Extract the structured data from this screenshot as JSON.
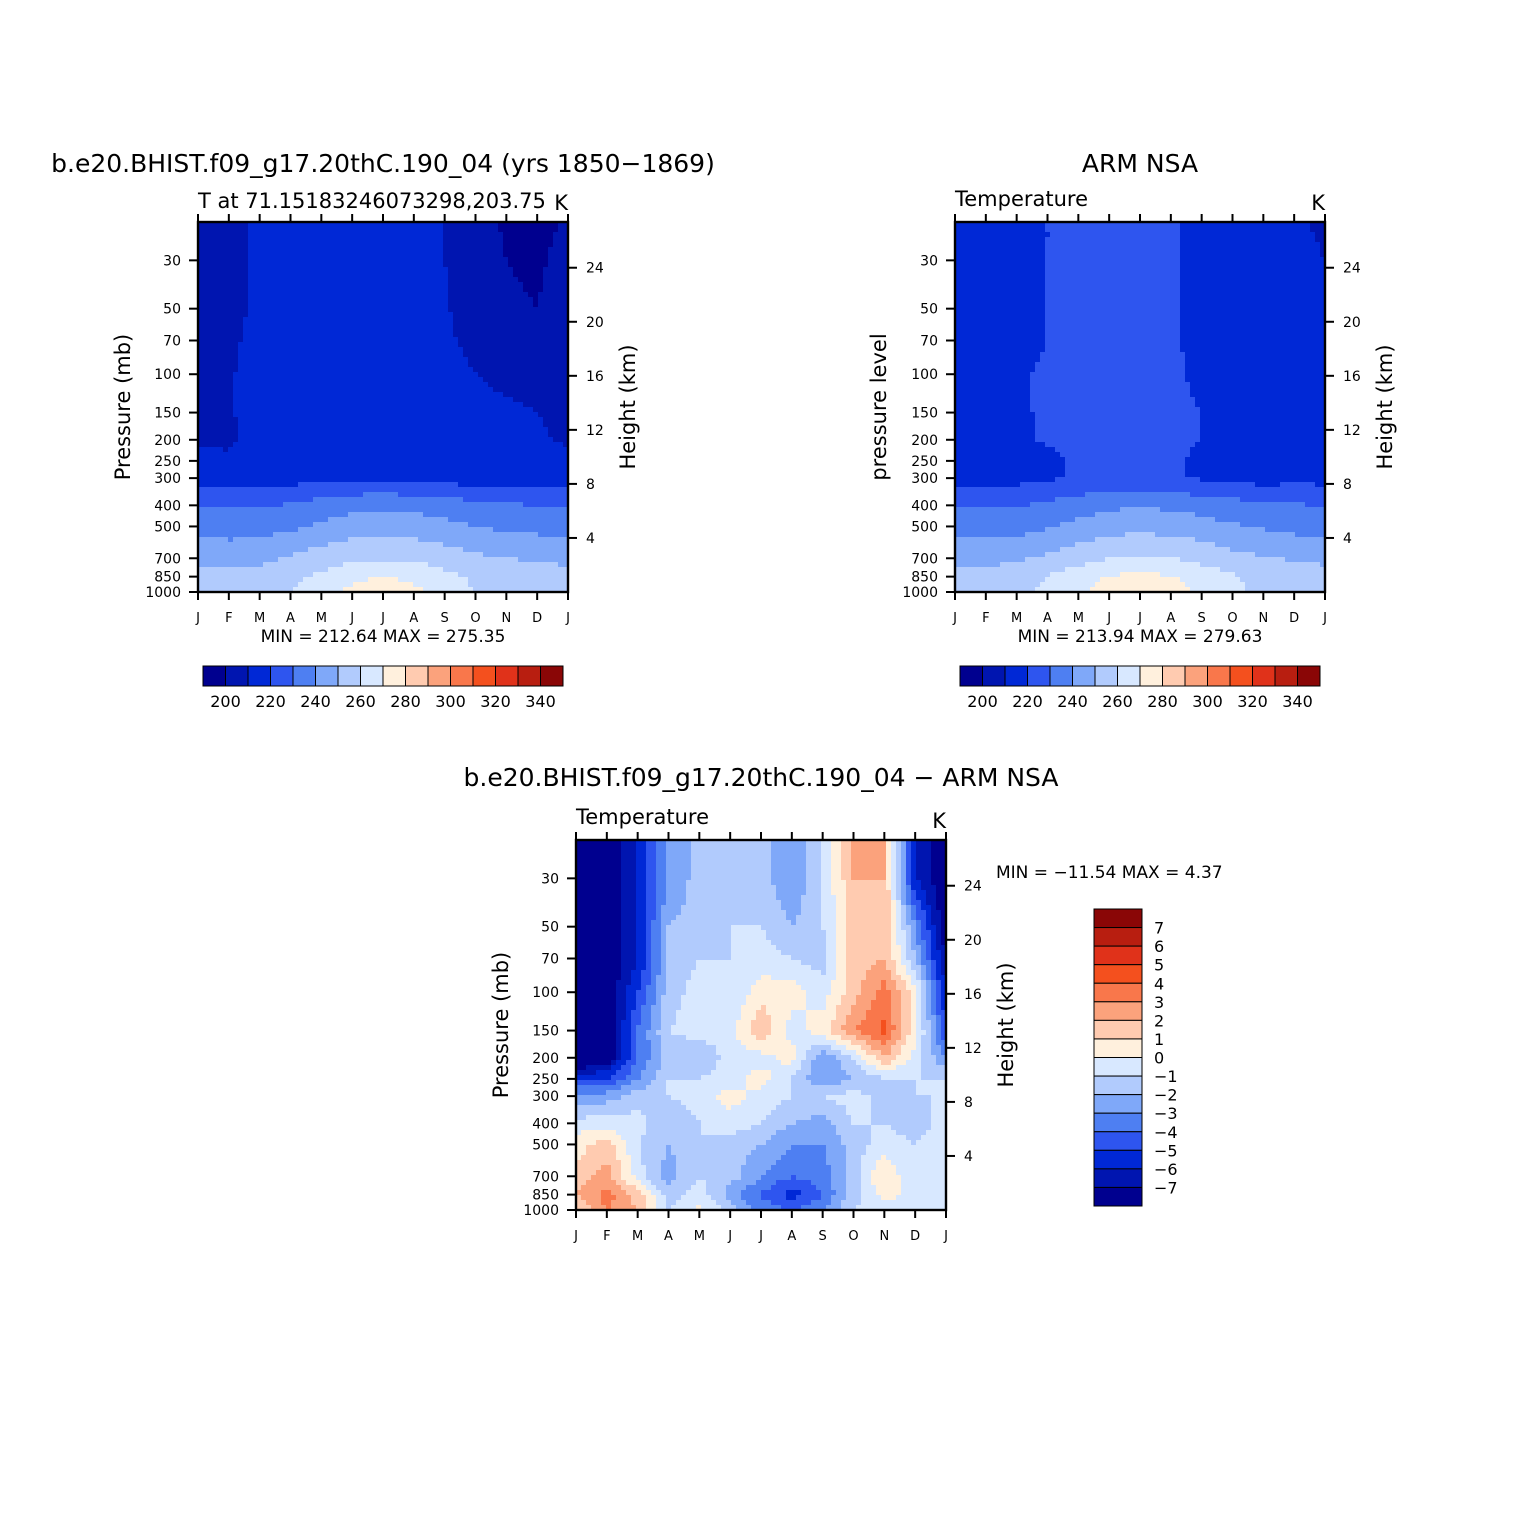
{
  "panels": [
    {
      "key": "model",
      "title": "b.e20.BHIST.f09_g17.20thC.190_04 (yrs 1850−1869)",
      "left_label": "T at 71.15183246073298,203.75",
      "units": "K",
      "ylabel": "Pressure (mb)",
      "ylabel_right": "Height (km)",
      "stats": "MIN = 212.64 MAX = 275.35"
    },
    {
      "key": "obs",
      "title": "ARM NSA",
      "left_label": "Temperature",
      "units": "K",
      "ylabel": "pressure level",
      "ylabel_right": "Height (km)",
      "stats": "MIN = 213.94 MAX = 279.63"
    },
    {
      "key": "diff",
      "title": "b.e20.BHIST.f09_g17.20thC.190_04 − ARM NSA",
      "left_label": "Temperature",
      "units": "K",
      "ylabel": "Pressure (mb)",
      "ylabel_right": "Height (km)",
      "stats": "MIN = −11.54 MAX =    4.37"
    }
  ],
  "chart_data": [
    {
      "type": "heatmap",
      "title": "b.e20.BHIST.f09_g17.20thC.190_04 (yrs 1850−1869)",
      "xlabel": "",
      "ylabel": "Pressure (mb)",
      "ylabel_right": "Height (km)",
      "x_ticks": [
        "J",
        "F",
        "M",
        "A",
        "M",
        "J",
        "J",
        "A",
        "S",
        "O",
        "N",
        "D",
        "J"
      ],
      "y_ticks": [
        30,
        50,
        70,
        100,
        150,
        200,
        250,
        300,
        400,
        500,
        700,
        850,
        1000
      ],
      "y_scale": "log",
      "ylim": [
        1000,
        20
      ],
      "y2_ticks": [
        4,
        8,
        12,
        16,
        20,
        24
      ],
      "months": [
        "J",
        "F",
        "M",
        "A",
        "M",
        "J",
        "J",
        "A",
        "S",
        "O",
        "N",
        "D",
        "J"
      ],
      "levels": [
        20,
        30,
        50,
        70,
        100,
        150,
        200,
        250,
        300,
        400,
        500,
        700,
        850,
        1000
      ],
      "values": [
        [
          202,
          206,
          212,
          217,
          218,
          220,
          219,
          215,
          210,
          203,
          199,
          198,
          201
        ],
        [
          203,
          206,
          212,
          217,
          218,
          220,
          219,
          215,
          210,
          204,
          200,
          199,
          202
        ],
        [
          204,
          207,
          212,
          217,
          218,
          220,
          219,
          215,
          211,
          205,
          201,
          200,
          203
        ],
        [
          205,
          208,
          213,
          217,
          218,
          220,
          219,
          216,
          212,
          207,
          202,
          201,
          204
        ],
        [
          207,
          209,
          214,
          218,
          218,
          220,
          219,
          217,
          214,
          210,
          206,
          205,
          206
        ],
        [
          208,
          209,
          214,
          218,
          218,
          220,
          220,
          217,
          216,
          215,
          213,
          210,
          208
        ],
        [
          209,
          209,
          212,
          217,
          218,
          219,
          219,
          217,
          214,
          212,
          212,
          211,
          209
        ],
        [
          212,
          211,
          213,
          216,
          218,
          219,
          219,
          216,
          213,
          212,
          213,
          213,
          212
        ],
        [
          216,
          215,
          215,
          216,
          218,
          219,
          219,
          218,
          216,
          215,
          216,
          216,
          216
        ],
        [
          229,
          229,
          229,
          231,
          234,
          237,
          238,
          237,
          235,
          233,
          231,
          230,
          229
        ],
        [
          236,
          235,
          236,
          238,
          242,
          245,
          246,
          245,
          243,
          240,
          238,
          237,
          236
        ],
        [
          248,
          247,
          248,
          251,
          255,
          258,
          259,
          258,
          255,
          252,
          250,
          249,
          248
        ],
        [
          253,
          252,
          253,
          257,
          262,
          268,
          270,
          268,
          263,
          258,
          255,
          254,
          253
        ],
        [
          256,
          255,
          256,
          260,
          266,
          272,
          275,
          272,
          266,
          260,
          257,
          256,
          256
        ]
      ],
      "colorbar": {
        "orientation": "horizontal",
        "levels": [
          195,
          200,
          210,
          220,
          230,
          240,
          250,
          260,
          270,
          280,
          290,
          300,
          310,
          320,
          330,
          340,
          345
        ],
        "colors": [
          "#00008f",
          "#0015b0",
          "#0028d6",
          "#2e55ef",
          "#4e7ff2",
          "#7fa8f9",
          "#b1cbfd",
          "#d8e8ff",
          "#fff0dd",
          "#ffcbb0",
          "#fba27c",
          "#f9774b",
          "#f4501e",
          "#e0321a",
          "#b81e10",
          "#8a0606"
        ],
        "tick_labels": [
          "200",
          "220",
          "240",
          "260",
          "280",
          "300",
          "320",
          "340"
        ],
        "contour_levels": [
          200,
          210,
          220,
          230,
          240,
          250,
          260,
          270,
          280,
          290,
          300,
          310,
          320,
          330,
          340
        ]
      },
      "stats": "MIN = 212.64 MAX = 275.35"
    },
    {
      "type": "heatmap",
      "title": "ARM NSA",
      "xlabel": "",
      "ylabel": "pressure level",
      "ylabel_right": "Height (km)",
      "x_ticks": [
        "J",
        "F",
        "M",
        "A",
        "M",
        "J",
        "J",
        "A",
        "S",
        "O",
        "N",
        "D",
        "J"
      ],
      "y_ticks": [
        30,
        50,
        70,
        100,
        150,
        200,
        250,
        300,
        400,
        500,
        700,
        850,
        1000
      ],
      "y_scale": "log",
      "ylim": [
        1000,
        20
      ],
      "y2_ticks": [
        4,
        8,
        12,
        16,
        20,
        24
      ],
      "months": [
        "J",
        "F",
        "M",
        "A",
        "M",
        "J",
        "J",
        "A",
        "S",
        "O",
        "N",
        "D",
        "J"
      ],
      "levels": [
        20,
        30,
        50,
        70,
        100,
        150,
        200,
        250,
        300,
        400,
        500,
        700,
        850,
        1000
      ],
      "values": [
        [
          212,
          214,
          218,
          220,
          222,
          223,
          224,
          221,
          218,
          215,
          213,
          212,
          208
        ],
        [
          213,
          215,
          218,
          220,
          222,
          223,
          224,
          221,
          218,
          215,
          214,
          213,
          210
        ],
        [
          214,
          215,
          218,
          220,
          222,
          223,
          223,
          221,
          218,
          215,
          214,
          213,
          212
        ],
        [
          215,
          216,
          218,
          220,
          222,
          223,
          223,
          221,
          218,
          216,
          215,
          214,
          213
        ],
        [
          217,
          218,
          219,
          221,
          222,
          223,
          222,
          221,
          219,
          216,
          215,
          215,
          214
        ],
        [
          219,
          218,
          219,
          221,
          222,
          223,
          222,
          221,
          220,
          217,
          215,
          215,
          216
        ],
        [
          218,
          216,
          218,
          221,
          222,
          223,
          222,
          221,
          220,
          217,
          214,
          214,
          218
        ],
        [
          214,
          213,
          215,
          218,
          221,
          222,
          222,
          221,
          219,
          215,
          213,
          213,
          214
        ],
        [
          217,
          216,
          217,
          219,
          221,
          222,
          222,
          221,
          219,
          217,
          216,
          217,
          217
        ],
        [
          229,
          229,
          229,
          232,
          235,
          238,
          239,
          238,
          236,
          234,
          232,
          231,
          229
        ],
        [
          236,
          236,
          236,
          239,
          243,
          246,
          247,
          246,
          244,
          241,
          239,
          237,
          236
        ],
        [
          248,
          247,
          249,
          252,
          256,
          260,
          261,
          260,
          257,
          253,
          251,
          249,
          248
        ],
        [
          253,
          253,
          255,
          260,
          266,
          271,
          272,
          271,
          266,
          261,
          257,
          255,
          253
        ],
        [
          255,
          255,
          257,
          262,
          268,
          275,
          278,
          275,
          268,
          262,
          258,
          256,
          255
        ]
      ],
      "colorbar": {
        "orientation": "horizontal",
        "levels": [
          195,
          200,
          210,
          220,
          230,
          240,
          250,
          260,
          270,
          280,
          290,
          300,
          310,
          320,
          330,
          340,
          345
        ],
        "colors": [
          "#00008f",
          "#0015b0",
          "#0028d6",
          "#2e55ef",
          "#4e7ff2",
          "#7fa8f9",
          "#b1cbfd",
          "#d8e8ff",
          "#fff0dd",
          "#ffcbb0",
          "#fba27c",
          "#f9774b",
          "#f4501e",
          "#e0321a",
          "#b81e10",
          "#8a0606"
        ],
        "tick_labels": [
          "200",
          "220",
          "240",
          "260",
          "280",
          "300",
          "320",
          "340"
        ],
        "contour_levels": [
          200,
          210,
          220,
          230,
          240,
          250,
          260,
          270,
          280,
          290,
          300,
          310,
          320,
          330,
          340
        ]
      },
      "stats": "MIN = 213.94 MAX = 279.63"
    },
    {
      "type": "heatmap",
      "title": "b.e20.BHIST.f09_g17.20thC.190_04 − ARM NSA",
      "xlabel": "",
      "ylabel": "Pressure (mb)",
      "ylabel_right": "Height (km)",
      "x_ticks": [
        "J",
        "F",
        "M",
        "A",
        "M",
        "J",
        "J",
        "A",
        "S",
        "O",
        "N",
        "D",
        "J"
      ],
      "y_ticks": [
        30,
        50,
        70,
        100,
        150,
        200,
        250,
        300,
        400,
        500,
        700,
        850,
        1000
      ],
      "y_scale": "log",
      "ylim": [
        1000,
        20
      ],
      "y2_ticks": [
        4,
        8,
        12,
        16,
        20,
        24
      ],
      "months": [
        "J",
        "F",
        "M",
        "A",
        "M",
        "J",
        "J",
        "A",
        "S",
        "O",
        "N",
        "D",
        "J"
      ],
      "levels": [
        20,
        30,
        50,
        70,
        100,
        150,
        200,
        250,
        300,
        400,
        500,
        700,
        850,
        1000
      ],
      "values": [
        [
          -10,
          -8,
          -6,
          -3,
          -1.5,
          -1,
          -1.5,
          -3,
          -1,
          2,
          2,
          -6,
          -8
        ],
        [
          -10,
          -8,
          -6,
          -3,
          -1.5,
          -1,
          -1.5,
          -3,
          -1,
          2,
          2,
          -6,
          -8
        ],
        [
          -10,
          -8,
          -6,
          -2,
          -1.5,
          -1,
          -1,
          -2,
          -1,
          1.5,
          2,
          -3,
          -8
        ],
        [
          -10,
          -8,
          -6,
          -2,
          -1,
          -1,
          -0.5,
          -1,
          -1.5,
          1.5,
          2,
          -2,
          -7
        ],
        [
          -10,
          -8,
          -5,
          -1.5,
          -0.5,
          -1,
          0.5,
          0.5,
          -0.5,
          1.5,
          3.5,
          0.5,
          -6
        ],
        [
          -10,
          -8,
          -4,
          -1,
          -0.5,
          -0.5,
          2,
          -0.5,
          0.5,
          3,
          4.2,
          0.5,
          -5
        ],
        [
          -9,
          -8,
          -4,
          -1.5,
          -2,
          -0.5,
          -0.5,
          0.5,
          -3,
          -1,
          2,
          -0.5,
          -3
        ],
        [
          -5,
          -5,
          -3,
          -1,
          -1,
          -0.5,
          0.5,
          -1,
          -3,
          -2,
          -1,
          -1,
          -1
        ],
        [
          -3,
          -2.5,
          -1.5,
          -1,
          -0.5,
          0.5,
          -0.5,
          -1,
          -1,
          -0.5,
          -1.5,
          -1,
          -1
        ],
        [
          -0.5,
          -0.5,
          -0.5,
          -2,
          -1,
          -0.5,
          -1,
          -2,
          -2.5,
          -1,
          -1,
          -1.5,
          -0.5
        ],
        [
          0.5,
          1.5,
          -1,
          -2,
          -1,
          -1.5,
          -2,
          -3,
          -3,
          -1.5,
          -0.5,
          -1,
          -0.5
        ],
        [
          1.5,
          2.5,
          -0.5,
          -2.5,
          -1,
          -1.5,
          -3,
          -4,
          -3.5,
          -1.5,
          1,
          -1,
          -0.5
        ],
        [
          2,
          3.5,
          1.5,
          -1.5,
          -0.5,
          -2.5,
          -4,
          -5.5,
          -4,
          -1.5,
          0.5,
          -0.5,
          -0.5
        ],
        [
          1,
          3,
          2,
          -1,
          0.3,
          -1.5,
          -3.5,
          -4,
          -3,
          -1,
          -0.5,
          -0.5,
          -0.5
        ]
      ],
      "colorbar": {
        "orientation": "vertical",
        "levels": [
          -8,
          -7,
          -6,
          -5,
          -4,
          -3,
          -2,
          -1,
          0,
          1,
          2,
          3,
          4,
          5,
          6,
          7,
          8
        ],
        "colors": [
          "#00008f",
          "#0015b0",
          "#0028d6",
          "#2e55ef",
          "#4e7ff2",
          "#7fa8f9",
          "#b1cbfd",
          "#d8e8ff",
          "#fff0dd",
          "#ffcbb0",
          "#fba27c",
          "#f9774b",
          "#f4501e",
          "#e0321a",
          "#b81e10",
          "#8a0606"
        ],
        "tick_labels": [
          "7",
          "6",
          "5",
          "4",
          "3",
          "2",
          "1",
          "0",
          "−1",
          "−2",
          "−3",
          "−4",
          "−5",
          "−6",
          "−7"
        ],
        "contour_levels": [
          7,
          6,
          5,
          4,
          3,
          2,
          1,
          0,
          -1,
          -2,
          -3,
          -4,
          -5,
          -6,
          -7
        ]
      },
      "stats": "MIN = −11.54 MAX =    4.37"
    }
  ]
}
